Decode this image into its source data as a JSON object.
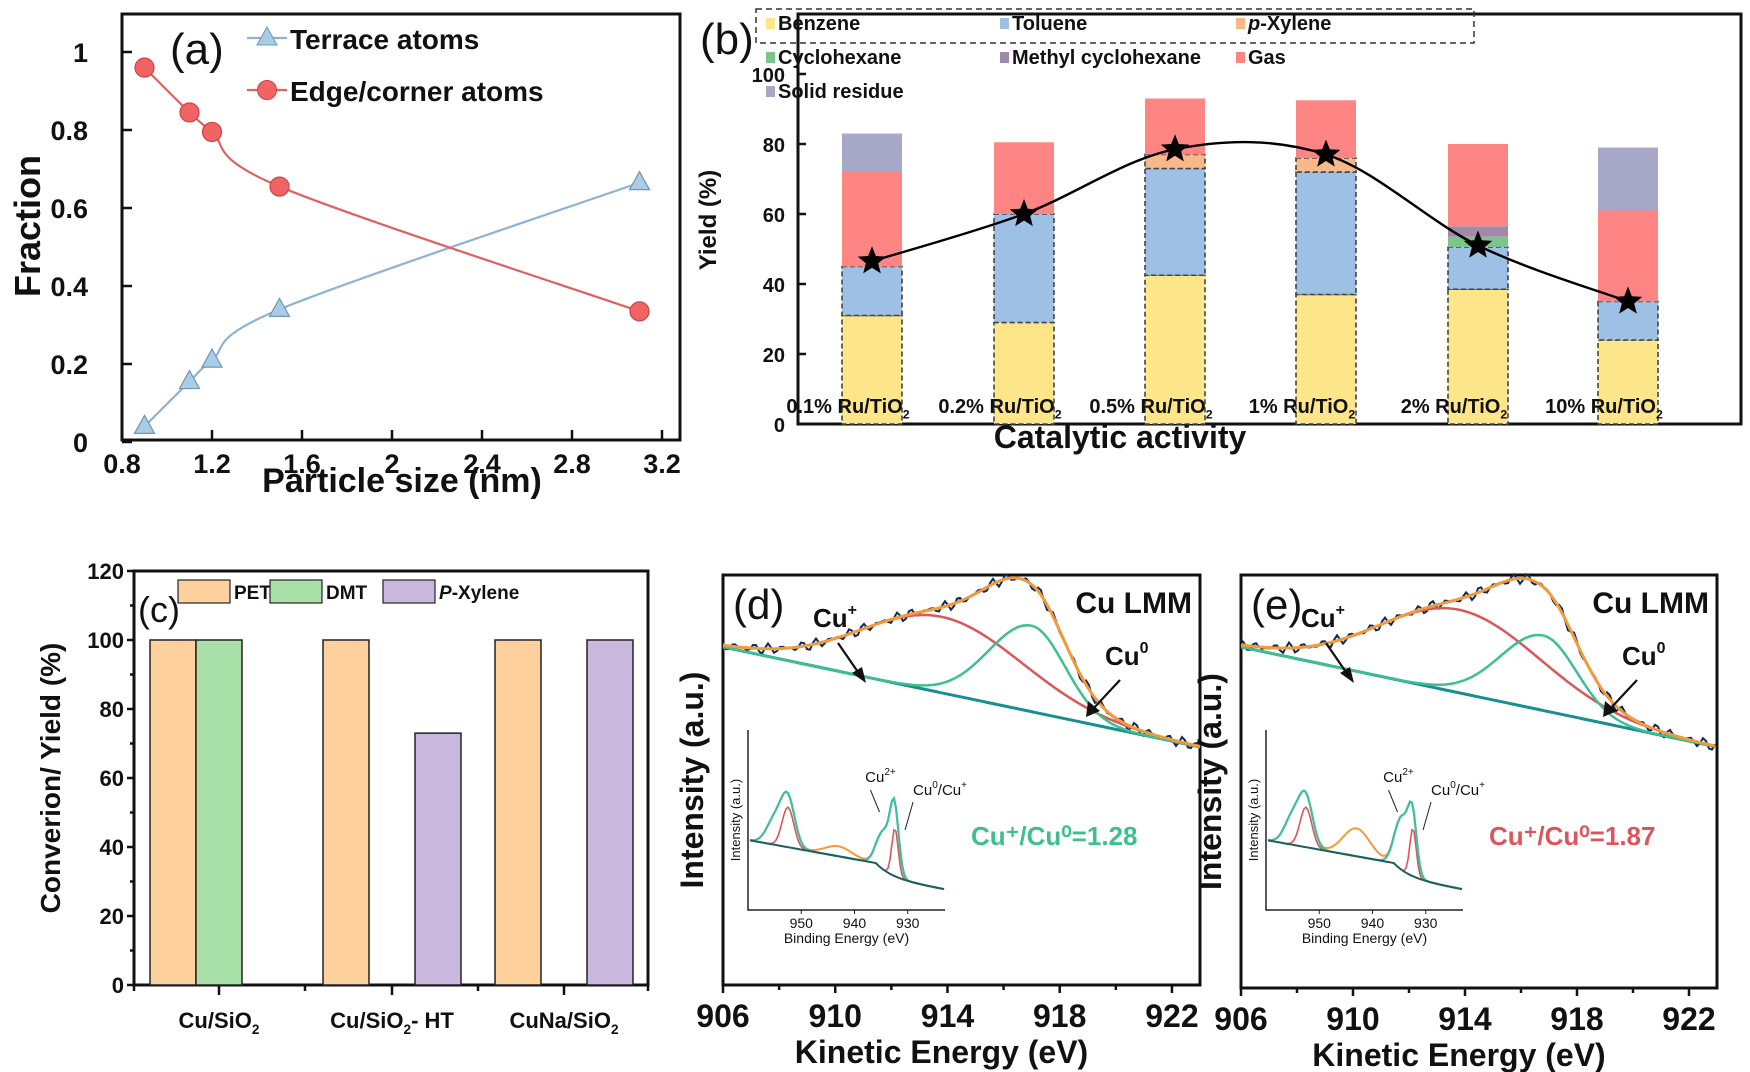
{
  "chart_data": [
    {
      "panel": "(a)",
      "type": "line",
      "title": "",
      "xlabel": "Particle size (nm)",
      "ylabel": "Fraction",
      "xlim": [
        0.8,
        3.3
      ],
      "ylim": [
        0,
        1.1
      ],
      "xticks": [
        "0.8",
        "1.2",
        "1.6",
        "2",
        "2.4",
        "2.8",
        "3.2"
      ],
      "xtick_values": [
        0.8,
        1.2,
        1.6,
        2.0,
        2.4,
        2.8,
        3.2
      ],
      "yticks": [
        "0",
        "0.2",
        "0.4",
        "0.6",
        "0.8",
        "1"
      ],
      "ytick_values": [
        0,
        0.2,
        0.4,
        0.6,
        0.8,
        1.0
      ],
      "legend_position": "top-right",
      "series": [
        {
          "name": "Terrace atoms",
          "marker": "triangle",
          "color": "#8fb3d0",
          "x": [
            0.9,
            1.1,
            1.2,
            1.5,
            3.1
          ],
          "y": [
            0.04,
            0.155,
            0.21,
            0.34,
            0.665
          ]
        },
        {
          "name": "Edge/corner atoms",
          "marker": "circle",
          "color": "#e06060",
          "x": [
            0.9,
            1.1,
            1.2,
            1.5,
            3.1
          ],
          "y": [
            0.96,
            0.845,
            0.795,
            0.655,
            0.335
          ]
        }
      ]
    },
    {
      "panel": "(b)",
      "type": "bar",
      "stacked": true,
      "xlabel": "Catalytic activity",
      "ylabel": "Yield  (%)",
      "ylim": [
        0,
        110
      ],
      "yticks": [
        "0",
        "20",
        "40",
        "60",
        "80",
        "100"
      ],
      "ytick_values": [
        0,
        20,
        40,
        60,
        80,
        100
      ],
      "categories": [
        "0.1% Ru/TiO",
        "0.2% Ru/TiO",
        "0.5% Ru/TiO",
        "1% Ru/TiO",
        "2% Ru/TiO",
        "10% Ru/TiO"
      ],
      "category_subscript": "2",
      "legend_position": "top",
      "series": [
        {
          "name": "Benzene",
          "color": "#fde58a",
          "values": [
            31,
            29,
            42.5,
            37,
            38.5,
            24
          ]
        },
        {
          "name": "Toluene",
          "color": "#9dc0e4",
          "values": [
            14,
            31,
            30.5,
            35,
            12,
            11
          ]
        },
        {
          "name": "p-Xylene",
          "color": "#f7b98a",
          "values": [
            0,
            0,
            4,
            4,
            0,
            0
          ]
        },
        {
          "name": "Cyclohexane",
          "color": "#7cc48a",
          "values": [
            0,
            0,
            0,
            0,
            3,
            0
          ]
        },
        {
          "name": "Methyl cyclohexane",
          "color": "#a08aa8",
          "values": [
            0,
            0,
            0,
            0,
            3,
            0
          ]
        },
        {
          "name": "Gas",
          "color": "#ff8585",
          "values": [
            27,
            20.5,
            16,
            16.5,
            23.5,
            26
          ]
        },
        {
          "name": "Solid residue",
          "color": "#a7a8c8",
          "values": [
            11,
            0,
            0,
            0,
            0,
            18
          ]
        }
      ],
      "line_series": {
        "name": "activity",
        "marker": "star",
        "values": [
          46.5,
          60,
          78.5,
          77,
          51,
          35
        ]
      }
    },
    {
      "panel": "(c)",
      "type": "bar",
      "xlabel": "",
      "ylabel": "Converion/ Yield (%)",
      "ylim": [
        0,
        120
      ],
      "yticks": [
        "0",
        "20",
        "40",
        "60",
        "80",
        "100",
        "120"
      ],
      "ytick_values": [
        0,
        20,
        40,
        60,
        80,
        100,
        120
      ],
      "categories": [
        "Cu/SiO",
        "Cu/SiO",
        "CuNa/SiO"
      ],
      "category_suffix": [
        "",
        "- HT",
        ""
      ],
      "category_subscript": "2",
      "legend_position": "top",
      "series": [
        {
          "name": "PET",
          "color": "#fdd09e",
          "values": [
            100,
            100,
            100
          ]
        },
        {
          "name": "DMT",
          "color": "#a8e0a8",
          "values": [
            100,
            0,
            0
          ]
        },
        {
          "name": "P-Xylene",
          "color": "#c9b7dd",
          "values": [
            0,
            73,
            100
          ]
        }
      ]
    },
    {
      "panel": "(d)",
      "type": "line",
      "xlabel": "Kinetic Energy (eV)",
      "ylabel": "Intensity (a.u.)",
      "xlim": [
        906,
        923
      ],
      "xticks": [
        "906",
        "910",
        "914",
        "918",
        "922"
      ],
      "xtick_values": [
        906,
        910,
        914,
        918,
        922
      ],
      "annotations": [
        "Cu LMM",
        "Cu+",
        "Cu0",
        "Cu+/Cu0=1.28"
      ],
      "ratio_text": "Cu⁺/Cu⁰=1.28",
      "ratio_color": "#3dbf8f",
      "cu_plus_peak_ev": 913.8,
      "cu0_peak_ev": 917.0,
      "inset": {
        "xlabel": "Binding Energy (eV)",
        "ylabel": "Intensity (a.u.)",
        "xticks": [
          "950",
          "940",
          "930"
        ],
        "labels": [
          "Cu2+",
          "Cu0/Cu+"
        ]
      }
    },
    {
      "panel": "(e)",
      "type": "line",
      "xlabel": "Kinetic Energy (eV)",
      "ylabel": "Intensity (a.u.)",
      "xlim": [
        906,
        923
      ],
      "xticks": [
        "906",
        "910",
        "914",
        "918",
        "922"
      ],
      "xtick_values": [
        906,
        910,
        914,
        918,
        922
      ],
      "annotations": [
        "Cu LMM",
        "Cu+",
        "Cu0",
        "Cu+/Cu0=1.87"
      ],
      "ratio_text": "Cu⁺/Cu⁰=1.87",
      "ratio_color": "#d9575b",
      "cu_plus_peak_ev": 913.8,
      "cu0_peak_ev": 916.8,
      "inset": {
        "xlabel": "Binding Energy (eV)",
        "ylabel": "Intensity (a.u.)",
        "xticks": [
          "950",
          "940",
          "930"
        ],
        "labels": [
          "Cu2+",
          "Cu0/Cu+"
        ]
      }
    }
  ],
  "labels": {
    "a": "(a)",
    "b": "(b)",
    "c": "(c)",
    "d": "(d)",
    "e": "(e)",
    "cu_lmm": "Cu LMM",
    "cu_plus": "Cu",
    "cu_plus_sup": "+",
    "cu_zero": "Cu",
    "cu_zero_sup": "0",
    "cu2": "Cu",
    "cu2_sup": "2+",
    "cu0cu": "Cu",
    "cu0cu_sup0": "0",
    "cu0cu_mid": "/Cu",
    "cu0cu_sup1": "+",
    "bind": "Binding Energy (eV)",
    "inset_y": "Intensity (a.u.)"
  }
}
